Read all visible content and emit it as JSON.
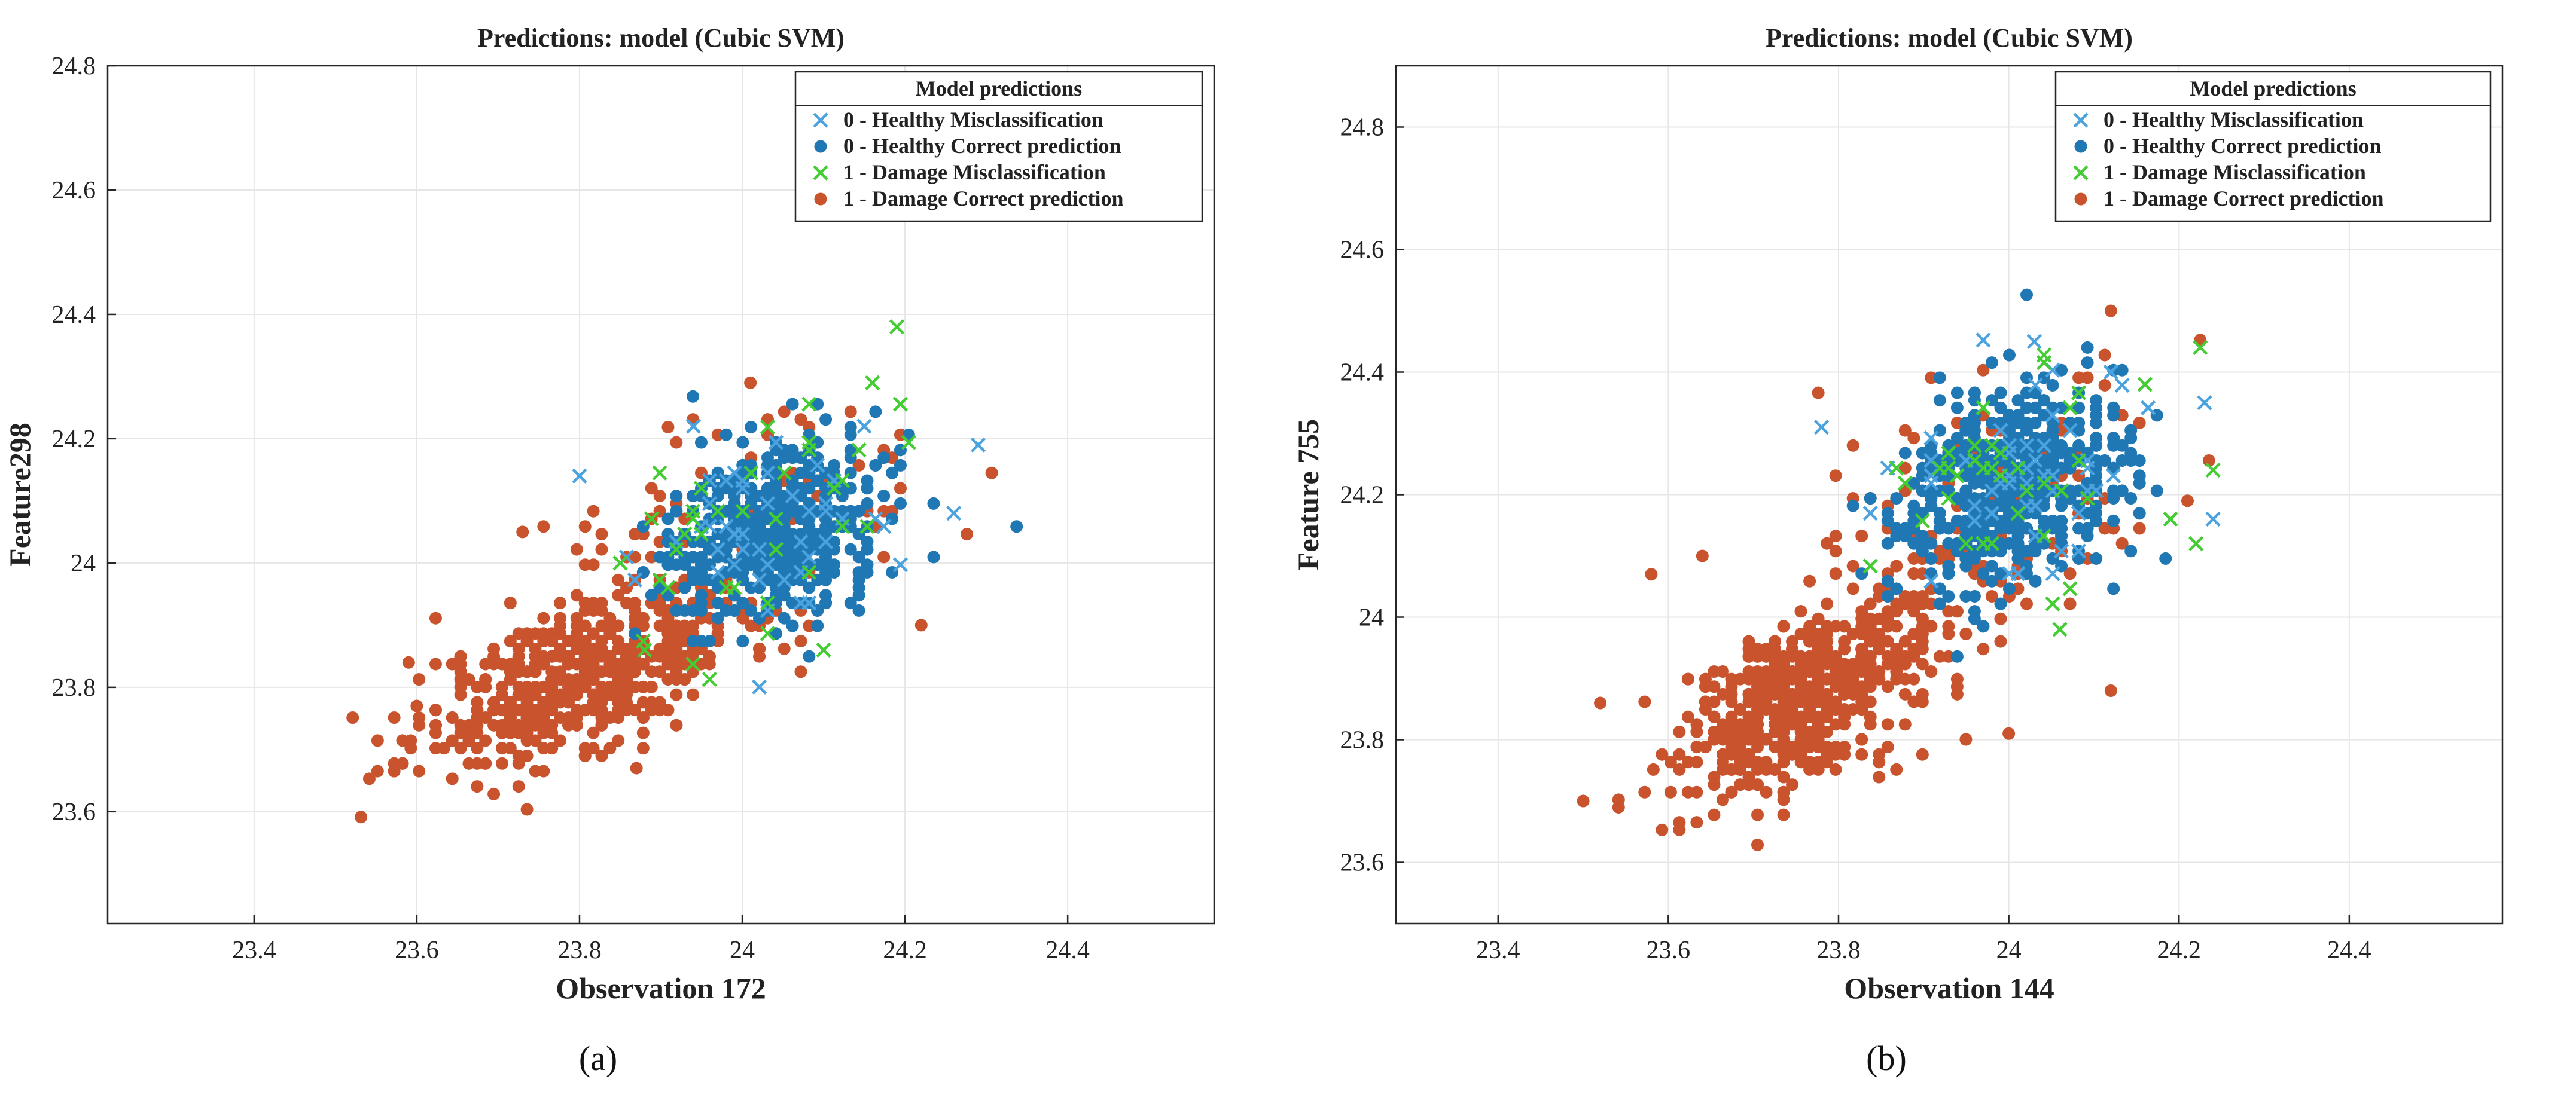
{
  "colors": {
    "healthy_mis": "#4aa3df",
    "healthy_ok": "#1f77b4",
    "damage_mis": "#44cc33",
    "damage_ok": "#c8532c",
    "grid": "#e6e6e6",
    "axis": "#262626"
  },
  "legend": {
    "title": "Model predictions",
    "entries": [
      "0 - Healthy Misclassification",
      "0 - Healthy Correct prediction",
      "1 - Damage Misclassification",
      "1 - Damage Correct prediction"
    ]
  },
  "panels": {
    "a": {
      "label": "(a)"
    },
    "b": {
      "label": "(b)"
    }
  },
  "chart_data": [
    {
      "type": "scatter",
      "title": "Predictions: model  (Cubic SVM)",
      "xlabel": "Observation 172",
      "ylabel": "Feature298",
      "xlim": [
        23.22,
        24.58
      ],
      "ylim": [
        23.42,
        24.8
      ],
      "xticks": [
        23.4,
        23.6,
        23.8,
        24,
        24.2,
        24.4
      ],
      "yticks": [
        23.6,
        23.8,
        24,
        24.2,
        24.4,
        24.6,
        24.8
      ],
      "xtick_labels": [
        "23.4",
        "23.6",
        "23.8",
        "24",
        "24.2",
        "24.4"
      ],
      "ytick_labels": [
        "23.6",
        "23.8",
        "24",
        "24.2",
        "24.4",
        "24.6",
        "24.8"
      ],
      "grid": true,
      "legend_position": "top-right",
      "clusters": {
        "damage_correct": {
          "center": [
            23.8,
            23.82
          ],
          "spread": [
            0.1,
            0.075
          ],
          "count": 520,
          "corr": 0.6
        },
        "damage_correct_upper": {
          "center": [
            24.0,
            24.05
          ],
          "spread": [
            0.1,
            0.09
          ],
          "count": 140,
          "corr": 0.3
        },
        "healthy_correct": {
          "center": [
            24.04,
            24.05
          ],
          "spread": [
            0.065,
            0.075
          ],
          "count": 480,
          "corr": 0.35
        },
        "healthy_mis": {
          "center": [
            24.05,
            24.05
          ],
          "spread": [
            0.08,
            0.08
          ],
          "count": 45,
          "corr": 0.3
        },
        "damage_mis": {
          "center": [
            24.02,
            24.05
          ],
          "spread": [
            0.08,
            0.1
          ],
          "count": 35,
          "corr": 0.3
        }
      },
      "extra_points": {
        "healthy_mis": [
          [
            24.29,
            24.19
          ],
          [
            24.26,
            24.08
          ],
          [
            24.15,
            24.22
          ],
          [
            23.8,
            24.14
          ],
          [
            23.94,
            24.22
          ]
        ],
        "damage_mis": [
          [
            24.19,
            24.38
          ],
          [
            24.16,
            24.29
          ],
          [
            23.85,
            24.0
          ],
          [
            23.88,
            23.86
          ],
          [
            24.1,
            23.86
          ]
        ],
        "damage_correct": [
          [
            23.59,
            23.84
          ],
          [
            23.6,
            23.77
          ],
          [
            23.73,
            24.05
          ],
          [
            24.22,
            23.9
          ],
          [
            23.87,
            23.67
          ],
          [
            24.01,
            24.29
          ]
        ]
      }
    },
    {
      "type": "scatter",
      "title": "Predictions: model  (Cubic SVM)",
      "xlabel": "Observation 144",
      "ylabel": "Feature 755",
      "xlim": [
        23.28,
        24.58
      ],
      "ylim": [
        23.5,
        24.9
      ],
      "xticks": [
        23.4,
        23.6,
        23.8,
        24,
        24.2,
        24.4
      ],
      "yticks": [
        23.6,
        23.8,
        24,
        24.2,
        24.4,
        24.6,
        24.8
      ],
      "xtick_labels": [
        "23.4",
        "23.6",
        "23.8",
        "24",
        "24.2",
        "24.4"
      ],
      "ytick_labels": [
        "23.6",
        "23.8",
        "24",
        "24.2",
        "24.4",
        "24.6",
        "24.8"
      ],
      "grid": true,
      "legend_position": "top-right",
      "clusters": {
        "damage_correct": {
          "center": [
            23.76,
            23.87
          ],
          "spread": [
            0.08,
            0.085
          ],
          "count": 520,
          "corr": 0.55
        },
        "damage_correct_upper": {
          "center": [
            23.98,
            24.18
          ],
          "spread": [
            0.1,
            0.1
          ],
          "count": 140,
          "corr": 0.3
        },
        "healthy_correct": {
          "center": [
            24.0,
            24.21
          ],
          "spread": [
            0.065,
            0.08
          ],
          "count": 500,
          "corr": 0.3
        },
        "healthy_mis": {
          "center": [
            24.01,
            24.22
          ],
          "spread": [
            0.08,
            0.09
          ],
          "count": 50,
          "corr": 0.3
        },
        "damage_mis": {
          "center": [
            24.0,
            24.22
          ],
          "spread": [
            0.09,
            0.1
          ],
          "count": 35,
          "corr": 0.3
        }
      },
      "extra_points": {
        "healthy_mis": [
          [
            24.23,
            24.35
          ],
          [
            24.24,
            24.16
          ],
          [
            24.03,
            24.45
          ],
          [
            23.78,
            24.31
          ],
          [
            24.12,
            24.4
          ]
        ],
        "damage_mis": [
          [
            24.24,
            24.24
          ],
          [
            24.22,
            24.12
          ],
          [
            24.19,
            24.16
          ],
          [
            24.16,
            24.38
          ],
          [
            24.06,
            23.98
          ]
        ],
        "damage_correct": [
          [
            23.5,
            23.7
          ],
          [
            23.52,
            23.86
          ],
          [
            23.58,
            24.07
          ],
          [
            23.64,
            24.1
          ],
          [
            24.0,
            23.81
          ],
          [
            24.12,
            23.88
          ],
          [
            24.12,
            24.5
          ],
          [
            24.21,
            24.19
          ]
        ]
      }
    }
  ]
}
